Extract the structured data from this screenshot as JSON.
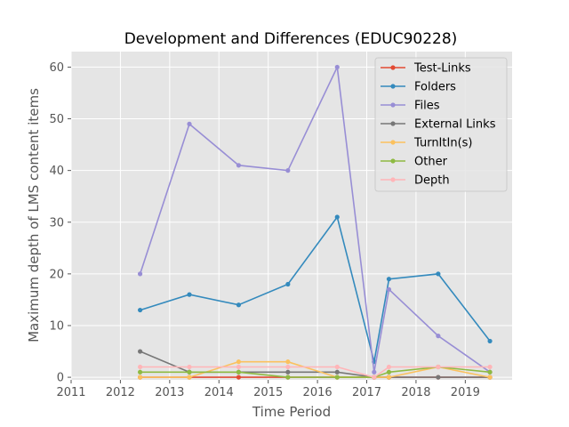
{
  "chart_data": {
    "type": "line",
    "title": "Development and Differences (EDUC90228)",
    "xlabel": "Time Period",
    "ylabel": "Maximum depth of LMS content items",
    "xlim": [
      2011,
      2019.95
    ],
    "ylim": [
      -0.5,
      63
    ],
    "x_ticks": [
      "2011",
      "2012",
      "2013",
      "2014",
      "2015",
      "2016",
      "2017",
      "2018",
      "2019"
    ],
    "y_ticks": [
      "0",
      "10",
      "20",
      "30",
      "40",
      "50",
      "60"
    ],
    "grid": true,
    "legend_placement": "top-right",
    "x": [
      2012.4,
      2013.4,
      2014.4,
      2015.4,
      2016.4,
      2017.15,
      2017.45,
      2018.45,
      2019.5
    ],
    "series": [
      {
        "name": "Test-Links",
        "color": "#e24a33",
        "values": [
          0,
          0,
          0,
          0,
          0,
          0,
          0,
          0,
          0
        ]
      },
      {
        "name": "Folders",
        "color": "#348abd",
        "values": [
          13,
          16,
          14,
          18,
          31,
          3,
          19,
          20,
          7
        ]
      },
      {
        "name": "Files",
        "color": "#988ed5",
        "values": [
          20,
          49,
          41,
          40,
          60,
          1,
          17,
          8,
          1
        ]
      },
      {
        "name": "External Links",
        "color": "#777777",
        "values": [
          5,
          1,
          1,
          1,
          1,
          0,
          0,
          0,
          0
        ]
      },
      {
        "name": "TurnItIn(s)",
        "color": "#fbc15e",
        "values": [
          0,
          0,
          3,
          3,
          0,
          0,
          0,
          2,
          0
        ]
      },
      {
        "name": "Other",
        "color": "#8eba42",
        "values": [
          1,
          1,
          1,
          0,
          0,
          0,
          1,
          2,
          1
        ]
      },
      {
        "name": "Depth",
        "color": "#ffb5b8",
        "values": [
          2,
          2,
          2,
          2,
          2,
          0,
          2,
          2,
          2
        ]
      }
    ]
  }
}
